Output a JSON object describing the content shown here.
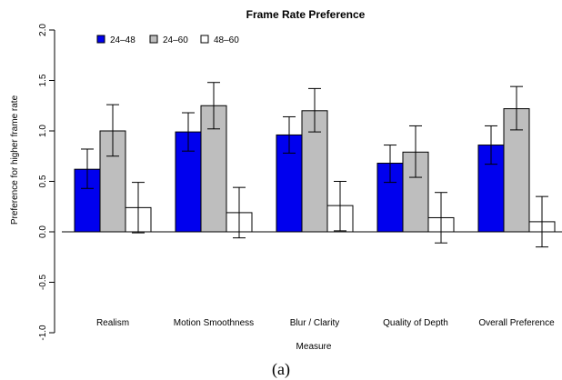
{
  "chart_data": {
    "type": "bar",
    "title": "Frame Rate Preference",
    "xlabel": "Measure",
    "ylabel": "Preference for higher frame rate",
    "ylim": [
      -1.0,
      2.0
    ],
    "yticks": [
      "-1.0",
      "-0.5",
      "0.0",
      "0.5",
      "1.0",
      "1.5",
      "2.0"
    ],
    "categories": [
      "Realism",
      "Motion Smoothness",
      "Blur / Clarity",
      "Quality of Depth",
      "Overall Preference"
    ],
    "series": [
      {
        "name": "24–48",
        "color": "#0000ee",
        "values": [
          0.62,
          0.99,
          0.96,
          0.68,
          0.86
        ],
        "err_low": [
          0.43,
          0.8,
          0.78,
          0.49,
          0.67
        ],
        "err_high": [
          0.82,
          1.18,
          1.14,
          0.86,
          1.05
        ]
      },
      {
        "name": "24–60",
        "color": "#bebebe",
        "values": [
          1.0,
          1.25,
          1.2,
          0.79,
          1.22
        ],
        "err_low": [
          0.75,
          1.02,
          0.99,
          0.54,
          1.01
        ],
        "err_high": [
          1.26,
          1.48,
          1.42,
          1.05,
          1.44
        ]
      },
      {
        "name": "48–60",
        "color": "#ffffff",
        "values": [
          0.24,
          0.19,
          0.26,
          0.14,
          0.1
        ],
        "err_low": [
          -0.01,
          -0.06,
          0.01,
          -0.11,
          -0.15
        ],
        "err_high": [
          0.49,
          0.44,
          0.5,
          0.39,
          0.35
        ]
      }
    ],
    "legend_position": "top-left",
    "grid": false,
    "caption": "(a)"
  }
}
